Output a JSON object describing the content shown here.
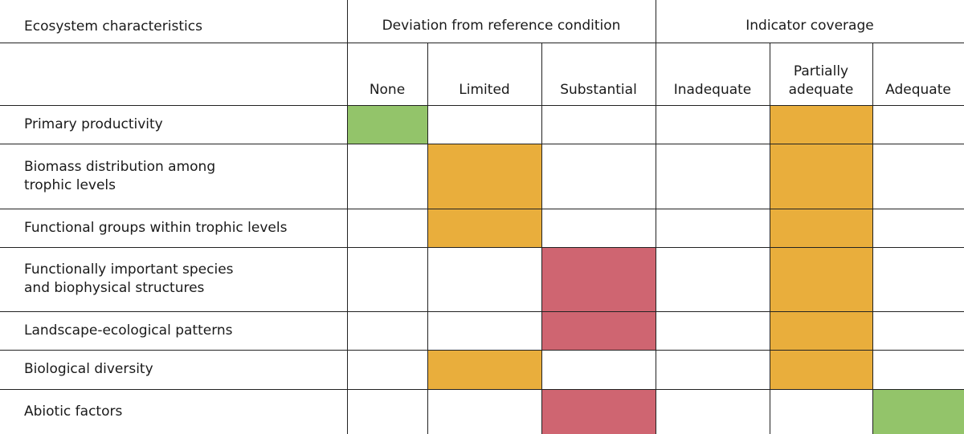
{
  "header": {
    "characteristics": "Ecosystem characteristics",
    "groups": [
      "Deviation from reference condition",
      "Indicator coverage"
    ],
    "columns": [
      [
        "None"
      ],
      [
        "Limited"
      ],
      [
        "Substantial"
      ],
      [
        "Inadequate"
      ],
      [
        "Partially",
        "adequate"
      ],
      [
        "Adequate"
      ]
    ]
  },
  "colors": {
    "green": "#93c46a",
    "orange": "#e9ae3c",
    "red": "#cf6571"
  },
  "table": {
    "rows": [
      {
        "label": [
          "Primary productivity"
        ],
        "cells": [
          "green",
          null,
          null,
          null,
          "orange",
          null
        ]
      },
      {
        "label": [
          "Biomass distribution among",
          "trophic levels"
        ],
        "cells": [
          null,
          "orange",
          null,
          null,
          "orange",
          null
        ]
      },
      {
        "label": [
          "Functional groups within trophic levels"
        ],
        "cells": [
          null,
          "orange",
          null,
          null,
          "orange",
          null
        ]
      },
      {
        "label": [
          "Functionally important species",
          "and biophysical structures"
        ],
        "cells": [
          null,
          null,
          "red",
          null,
          "orange",
          null
        ]
      },
      {
        "label": [
          "Landscape-ecological patterns"
        ],
        "cells": [
          null,
          null,
          "red",
          null,
          "orange",
          null
        ]
      },
      {
        "label": [
          "Biological diversity"
        ],
        "cells": [
          null,
          "orange",
          null,
          null,
          "orange",
          null
        ]
      },
      {
        "label": [
          "Abiotic factors"
        ],
        "cells": [
          null,
          null,
          "red",
          null,
          null,
          "green"
        ]
      }
    ]
  }
}
